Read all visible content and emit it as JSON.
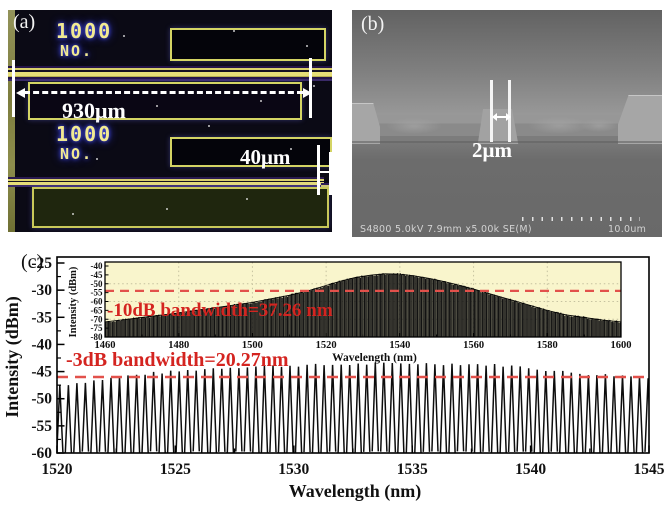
{
  "panels": {
    "a": {
      "label": "(a)",
      "device_id_top": {
        "line1": "1000",
        "line2": "NO."
      },
      "device_id_bottom": {
        "line1": "1000",
        "line2": "NO."
      },
      "length_label": "930μm",
      "gap_label": "40μm"
    },
    "b": {
      "label": "(b)",
      "gap_label": "2μm",
      "sem_status": "S4800 5.0kV 7.9mm x5.00k SE(M)",
      "scale_bar": "10.0um"
    },
    "c": {
      "label": "(c)",
      "bandwidth_10db": "-10dB bandwidth=37.26 nm",
      "bandwidth_3db": "-3dB bandwidth=20.27nm",
      "xlabel": "Wavelength (nm)",
      "ylabel": "Intensity (dBm)",
      "inset_xlabel": "Wavelength (nm)",
      "inset_ylabel": "Intensity (dBm)"
    }
  },
  "colors": {
    "annotation_red": "#d42420",
    "dashed_red": "#e2514b",
    "inset_bg": "#f9f5cc",
    "chip_border_yellow": "#d4d464",
    "chip_bg": "#0b0a15"
  },
  "chart_data": [
    {
      "id": "main_spectrum",
      "type": "line",
      "title": "",
      "xlabel": "Wavelength (nm)",
      "ylabel": "Intensity (dBm)",
      "xlim": [
        1520,
        1545
      ],
      "ylim": [
        -60,
        -23.9
      ],
      "xticks": [
        1520,
        1525,
        1530,
        1535,
        1540,
        1545
      ],
      "yticks": [
        -25,
        -30,
        -35,
        -40,
        -45,
        -50,
        -55,
        -60
      ],
      "grid": false,
      "legend": "none",
      "comb": {
        "fsr_nm": 0.36,
        "start_nm": 1520.12,
        "baseline_dbm": -60,
        "halfwidth_nm": 0.13
      },
      "envelope_peaks": [
        [
          1520,
          -47.6
        ],
        [
          1521,
          -47.0
        ],
        [
          1522,
          -46.4
        ],
        [
          1523,
          -45.8
        ],
        [
          1524,
          -45.3
        ],
        [
          1525,
          -45.0
        ],
        [
          1526,
          -44.6
        ],
        [
          1527,
          -44.3
        ],
        [
          1528,
          -44.1
        ],
        [
          1529,
          -44.0
        ],
        [
          1530,
          -43.9
        ],
        [
          1531,
          -43.8
        ],
        [
          1532,
          -43.7
        ],
        [
          1533,
          -43.6
        ],
        [
          1535,
          -43.5
        ],
        [
          1537,
          -43.6
        ],
        [
          1538,
          -43.7
        ],
        [
          1539,
          -43.9
        ],
        [
          1540,
          -44.3
        ],
        [
          1541,
          -44.9
        ],
        [
          1542,
          -45.3
        ],
        [
          1543,
          -45.6
        ],
        [
          1544,
          -45.8
        ],
        [
          1545,
          -46.0
        ]
      ],
      "dashed_line": {
        "dbm": -46,
        "label": "-3dB bandwidth=20.27nm"
      }
    },
    {
      "id": "inset_spectrum",
      "type": "area",
      "title": "",
      "xlabel": "Wavelength (nm)",
      "ylabel": "Intensity (dBm)",
      "xlim": [
        1460,
        1600
      ],
      "ylim": [
        -80,
        -37.7
      ],
      "xticks": [
        1460,
        1480,
        1500,
        1520,
        1540,
        1560,
        1580,
        1600
      ],
      "yticks": [
        -40,
        -45,
        -50,
        -55,
        -60,
        -65,
        -70,
        -75,
        -80
      ],
      "grid": "dotted",
      "band_upper": [
        [
          1460,
          -71.5
        ],
        [
          1470,
          -69.0
        ],
        [
          1480,
          -66.5
        ],
        [
          1490,
          -63.5
        ],
        [
          1500,
          -60.5
        ],
        [
          1505,
          -58.5
        ],
        [
          1510,
          -56.5
        ],
        [
          1515,
          -54.0
        ],
        [
          1520,
          -51.0
        ],
        [
          1524,
          -48.5
        ],
        [
          1528,
          -46.5
        ],
        [
          1532,
          -45.2
        ],
        [
          1536,
          -44.4
        ],
        [
          1540,
          -44.6
        ],
        [
          1544,
          -45.6
        ],
        [
          1548,
          -47.0
        ],
        [
          1552,
          -48.8
        ],
        [
          1556,
          -50.8
        ],
        [
          1560,
          -53.0
        ],
        [
          1565,
          -56.0
        ],
        [
          1570,
          -59.0
        ],
        [
          1575,
          -62.0
        ],
        [
          1580,
          -65.0
        ],
        [
          1585,
          -67.5
        ],
        [
          1590,
          -69.0
        ],
        [
          1595,
          -70.5
        ],
        [
          1600,
          -71.5
        ]
      ],
      "band_lower": [
        [
          1460,
          -75.0
        ],
        [
          1470,
          -73.5
        ],
        [
          1480,
          -71.5
        ],
        [
          1490,
          -69.5
        ],
        [
          1500,
          -67.0
        ],
        [
          1505,
          -65.5
        ],
        [
          1510,
          -64.0
        ],
        [
          1515,
          -62.5
        ],
        [
          1520,
          -61.0
        ],
        [
          1524,
          -59.8
        ],
        [
          1528,
          -58.8
        ],
        [
          1532,
          -58.0
        ],
        [
          1536,
          -57.5
        ],
        [
          1540,
          -56.8
        ],
        [
          1544,
          -56.0
        ],
        [
          1548,
          -55.5
        ],
        [
          1552,
          -55.5
        ],
        [
          1556,
          -56.2
        ],
        [
          1560,
          -57.5
        ],
        [
          1565,
          -60.0
        ],
        [
          1570,
          -63.0
        ],
        [
          1575,
          -66.0
        ],
        [
          1580,
          -69.0
        ],
        [
          1585,
          -71.5
        ],
        [
          1590,
          -74.0
        ],
        [
          1595,
          -76.0
        ],
        [
          1600,
          -78.0
        ]
      ],
      "dashed_line": {
        "dbm": -54,
        "label": "-10dB bandwidth=37.26 nm"
      }
    }
  ]
}
